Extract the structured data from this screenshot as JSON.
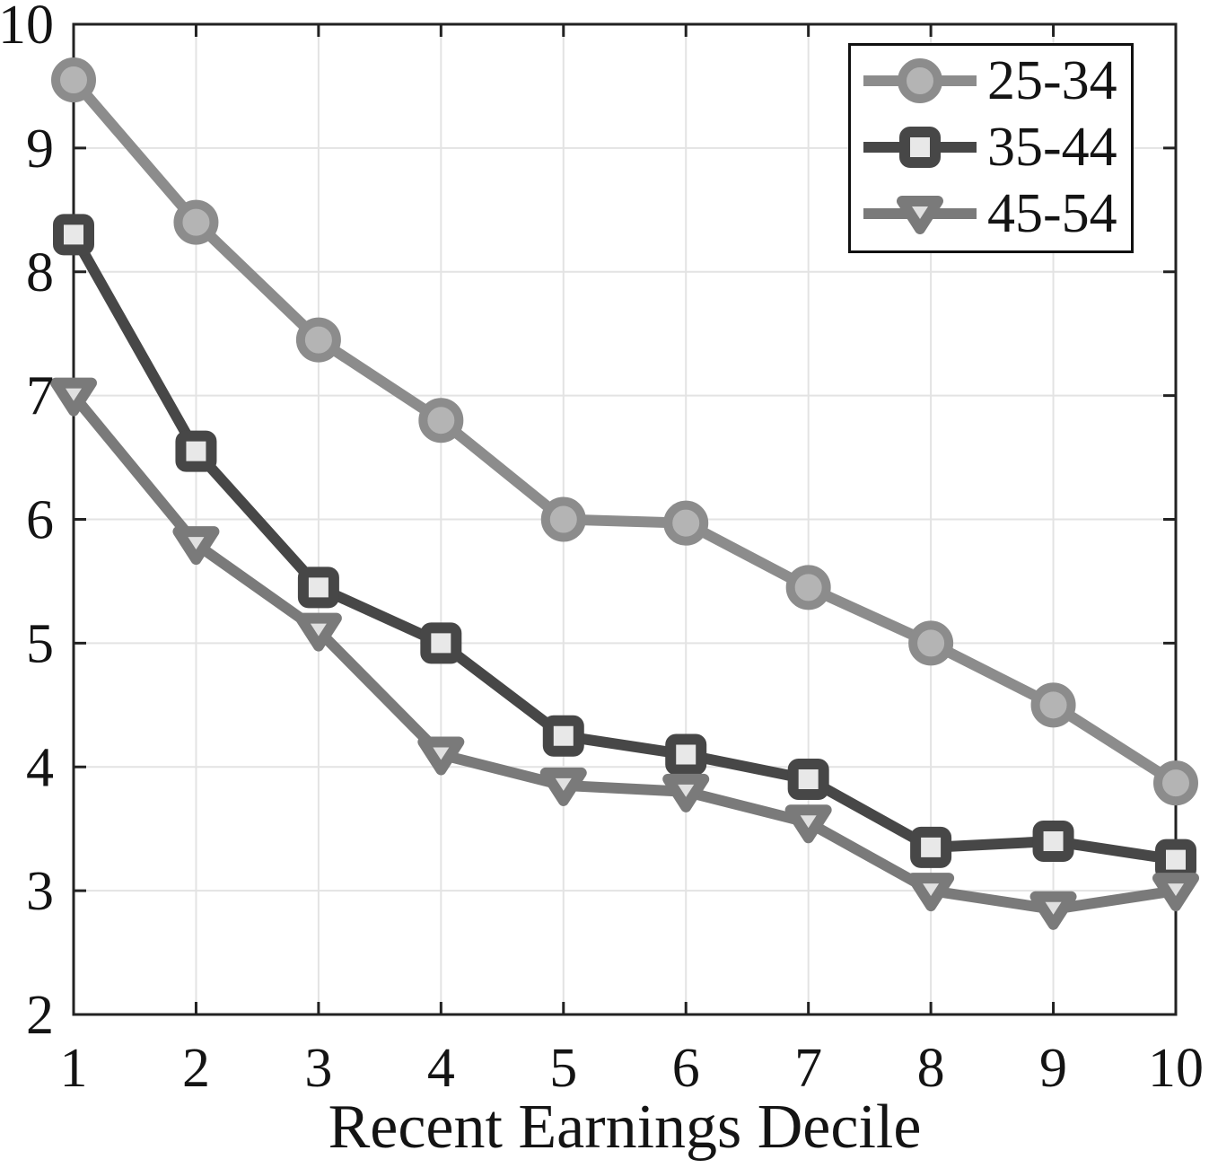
{
  "chart_data": {
    "type": "line",
    "title": "",
    "xlabel": "Recent Earnings Decile",
    "ylabel": "",
    "x": [
      1,
      2,
      3,
      4,
      5,
      6,
      7,
      8,
      9,
      10
    ],
    "xlim": [
      1,
      10
    ],
    "ylim": [
      2,
      10
    ],
    "x_ticks": [
      1,
      2,
      3,
      4,
      5,
      6,
      7,
      8,
      9,
      10
    ],
    "y_ticks": [
      2,
      3,
      4,
      5,
      6,
      7,
      8,
      9,
      10
    ],
    "grid": true,
    "legend_position": "top-right",
    "background": "#ffffff",
    "axis_color": "#222222",
    "grid_color": "#e3e3e3",
    "text_color": "#141414",
    "legend_border_color": "#111111",
    "series": [
      {
        "name": "25-34",
        "marker": "circle",
        "line_color": "#8c8c8c",
        "marker_face": "#b4b4b4",
        "values": [
          9.55,
          8.4,
          7.45,
          6.8,
          6.0,
          5.97,
          5.45,
          5.0,
          4.5,
          3.87
        ]
      },
      {
        "name": "35-44",
        "marker": "square",
        "line_color": "#474747",
        "marker_face": "#e8e8e8",
        "values": [
          8.3,
          6.55,
          5.45,
          5.0,
          4.25,
          4.1,
          3.9,
          3.35,
          3.4,
          3.25
        ]
      },
      {
        "name": "45-54",
        "marker": "triangle-down",
        "line_color": "#7a7a7a",
        "marker_face": "#e0e0e0",
        "values": [
          7.0,
          5.8,
          5.1,
          4.1,
          3.85,
          3.8,
          3.55,
          3.0,
          2.85,
          3.0
        ]
      }
    ]
  }
}
